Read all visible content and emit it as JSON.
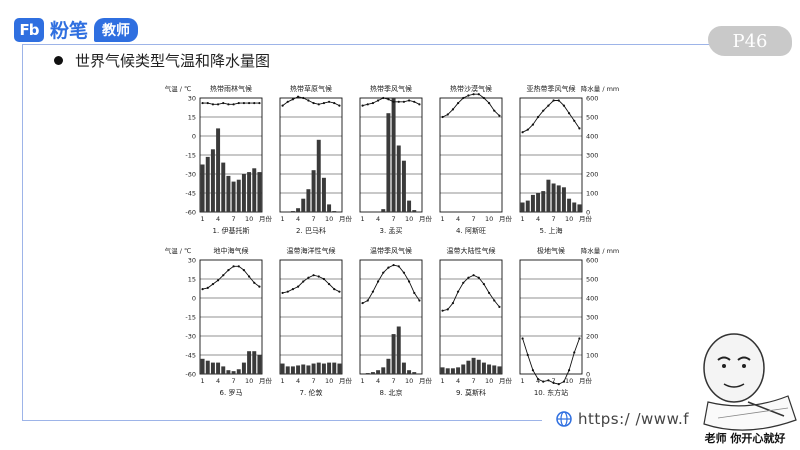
{
  "header": {
    "logo_mark": "Fb",
    "logo_text": "粉笔",
    "logo_tag": "教师",
    "page_number": "P46",
    "title": "世界气候类型气温和降水量图"
  },
  "footer": {
    "url": "https:/ /www.f",
    "meme_caption": "老师 你开心就好"
  },
  "axes_labels": {
    "temp": "气温 / ℃",
    "precip": "降水量 / mm",
    "month": "月份"
  },
  "temp_ticks": [
    "30",
    "15",
    "0",
    "-15",
    "-30",
    "-45",
    "-60"
  ],
  "precip_ticks": [
    "600",
    "500",
    "400",
    "300",
    "200",
    "100",
    "0"
  ],
  "month_ticks": [
    "1",
    "4",
    "7",
    "10"
  ],
  "chart_data": {
    "type": "bar",
    "temp_range": [
      -60,
      30
    ],
    "precip_range": [
      0,
      600
    ],
    "charts": [
      {
        "title": "热带雨林气候",
        "caption": "1. 伊基托斯",
        "temp": [
          26,
          26,
          25,
          25,
          26,
          25,
          25,
          26,
          26,
          26,
          26,
          26
        ],
        "precip": [
          250,
          290,
          330,
          440,
          260,
          190,
          160,
          170,
          200,
          210,
          230,
          210
        ]
      },
      {
        "title": "热带草原气候",
        "caption": "2. 巴马科",
        "temp": [
          24,
          27,
          29,
          31,
          30,
          28,
          26,
          25,
          26,
          27,
          26,
          24
        ],
        "precip": [
          0,
          0,
          5,
          20,
          70,
          120,
          220,
          380,
          180,
          40,
          5,
          0
        ]
      },
      {
        "title": "热带季风气候",
        "caption": "3. 孟买",
        "temp": [
          24,
          25,
          26,
          28,
          30,
          29,
          27,
          27,
          27,
          28,
          27,
          25
        ],
        "precip": [
          0,
          0,
          0,
          0,
          15,
          520,
          620,
          350,
          270,
          60,
          10,
          0
        ]
      },
      {
        "title": "热带沙漠气候",
        "caption": "4. 阿斯旺",
        "temp": [
          15,
          17,
          21,
          26,
          30,
          32,
          33,
          33,
          30,
          26,
          20,
          16
        ],
        "precip": [
          0,
          0,
          0,
          0,
          0,
          0,
          0,
          0,
          0,
          0,
          0,
          0
        ]
      },
      {
        "title": "亚热带季风气候",
        "caption": "5. 上海",
        "temp": [
          3,
          5,
          9,
          15,
          20,
          24,
          28,
          28,
          24,
          18,
          12,
          6
        ],
        "precip": [
          50,
          60,
          90,
          100,
          110,
          170,
          150,
          140,
          130,
          70,
          50,
          40
        ]
      },
      {
        "title": "地中海气候",
        "caption": "6. 罗马",
        "temp": [
          7,
          8,
          11,
          14,
          18,
          22,
          25,
          25,
          22,
          17,
          12,
          9
        ],
        "precip": [
          80,
          70,
          60,
          60,
          40,
          20,
          15,
          25,
          60,
          120,
          120,
          100
        ]
      },
      {
        "title": "温带海洋性气候",
        "caption": "7. 伦敦",
        "temp": [
          4,
          5,
          7,
          9,
          13,
          16,
          18,
          17,
          15,
          11,
          7,
          5
        ],
        "precip": [
          55,
          40,
          40,
          45,
          50,
          45,
          55,
          60,
          55,
          60,
          60,
          55
        ]
      },
      {
        "title": "温带季风气候",
        "caption": "8. 北京",
        "temp": [
          -4,
          -2,
          5,
          13,
          20,
          24,
          26,
          25,
          20,
          13,
          4,
          -2
        ],
        "precip": [
          3,
          5,
          10,
          20,
          35,
          80,
          210,
          250,
          60,
          20,
          10,
          3
        ]
      },
      {
        "title": "温带大陆性气候",
        "caption": "9. 莫斯科",
        "temp": [
          -10,
          -9,
          -4,
          5,
          12,
          16,
          18,
          16,
          11,
          4,
          -2,
          -7
        ],
        "precip": [
          35,
          30,
          30,
          35,
          50,
          70,
          85,
          75,
          60,
          50,
          45,
          40
        ]
      },
      {
        "title": "极地气候",
        "caption": "10. 东方站",
        "temp": [
          -32,
          -45,
          -57,
          -64,
          -66,
          -65,
          -67,
          -68,
          -66,
          -57,
          -43,
          -32
        ],
        "precip": [
          0,
          0,
          0,
          0,
          0,
          0,
          0,
          0,
          0,
          0,
          0,
          0
        ]
      }
    ]
  }
}
